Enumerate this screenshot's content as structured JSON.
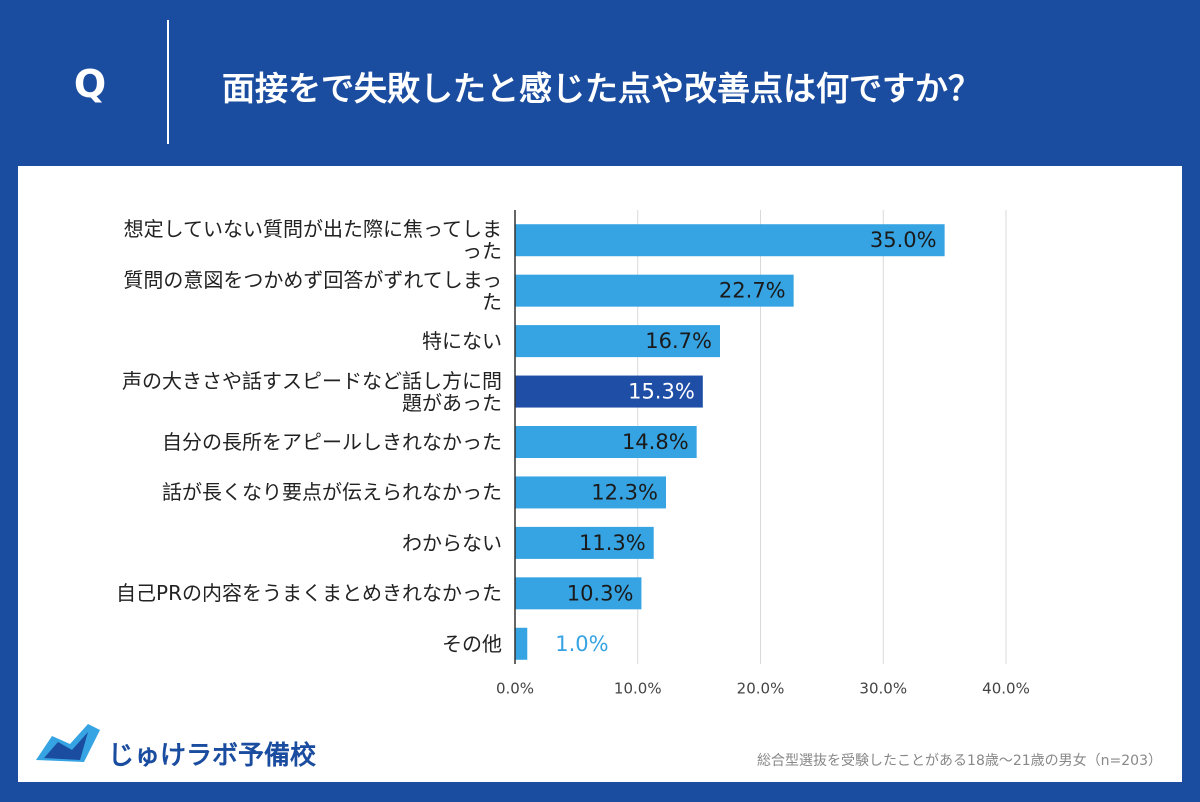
{
  "header": {
    "badge": "Q",
    "title": "面接をで失敗したと感じた点や改善点は何ですか？"
  },
  "chart_data": {
    "type": "bar",
    "orientation": "horizontal",
    "categories": [
      "想定していない質問が出た際に焦ってしまった",
      "質問の意図をつかめず回答がずれてしまった",
      "特にない",
      "声の大きさや話すスピードなど話し方に問題があった",
      "自分の長所をアピールしきれなかった",
      "話が長くなり要点が伝えられなかった",
      "わからない",
      "自己PRの内容をうまくまとめきれなかった",
      "その他"
    ],
    "values": [
      35.0,
      22.7,
      16.7,
      15.3,
      14.8,
      12.3,
      11.3,
      10.3,
      1.0
    ],
    "value_labels": [
      "35.0%",
      "22.7%",
      "16.7%",
      "15.3%",
      "14.8%",
      "12.3%",
      "11.3%",
      "10.3%",
      "1.0%"
    ],
    "colors": [
      "#36a3e2",
      "#36a3e2",
      "#36a3e2",
      "#1f4ea6",
      "#36a3e2",
      "#36a3e2",
      "#36a3e2",
      "#36a3e2",
      "#36a3e2"
    ],
    "xlim": [
      0,
      40
    ],
    "xticks": [
      {
        "value": 0,
        "label": "0.0%"
      },
      {
        "value": 10,
        "label": "10.0%"
      },
      {
        "value": 20,
        "label": "20.0%"
      },
      {
        "value": 30,
        "label": "30.0%"
      },
      {
        "value": 40,
        "label": "40.0%"
      }
    ],
    "grid": true
  },
  "footer": {
    "logo": "じゅけラボ予備校",
    "note": "総合型選抜を受験したことがある18歳～21歳の男女（n=203）"
  }
}
